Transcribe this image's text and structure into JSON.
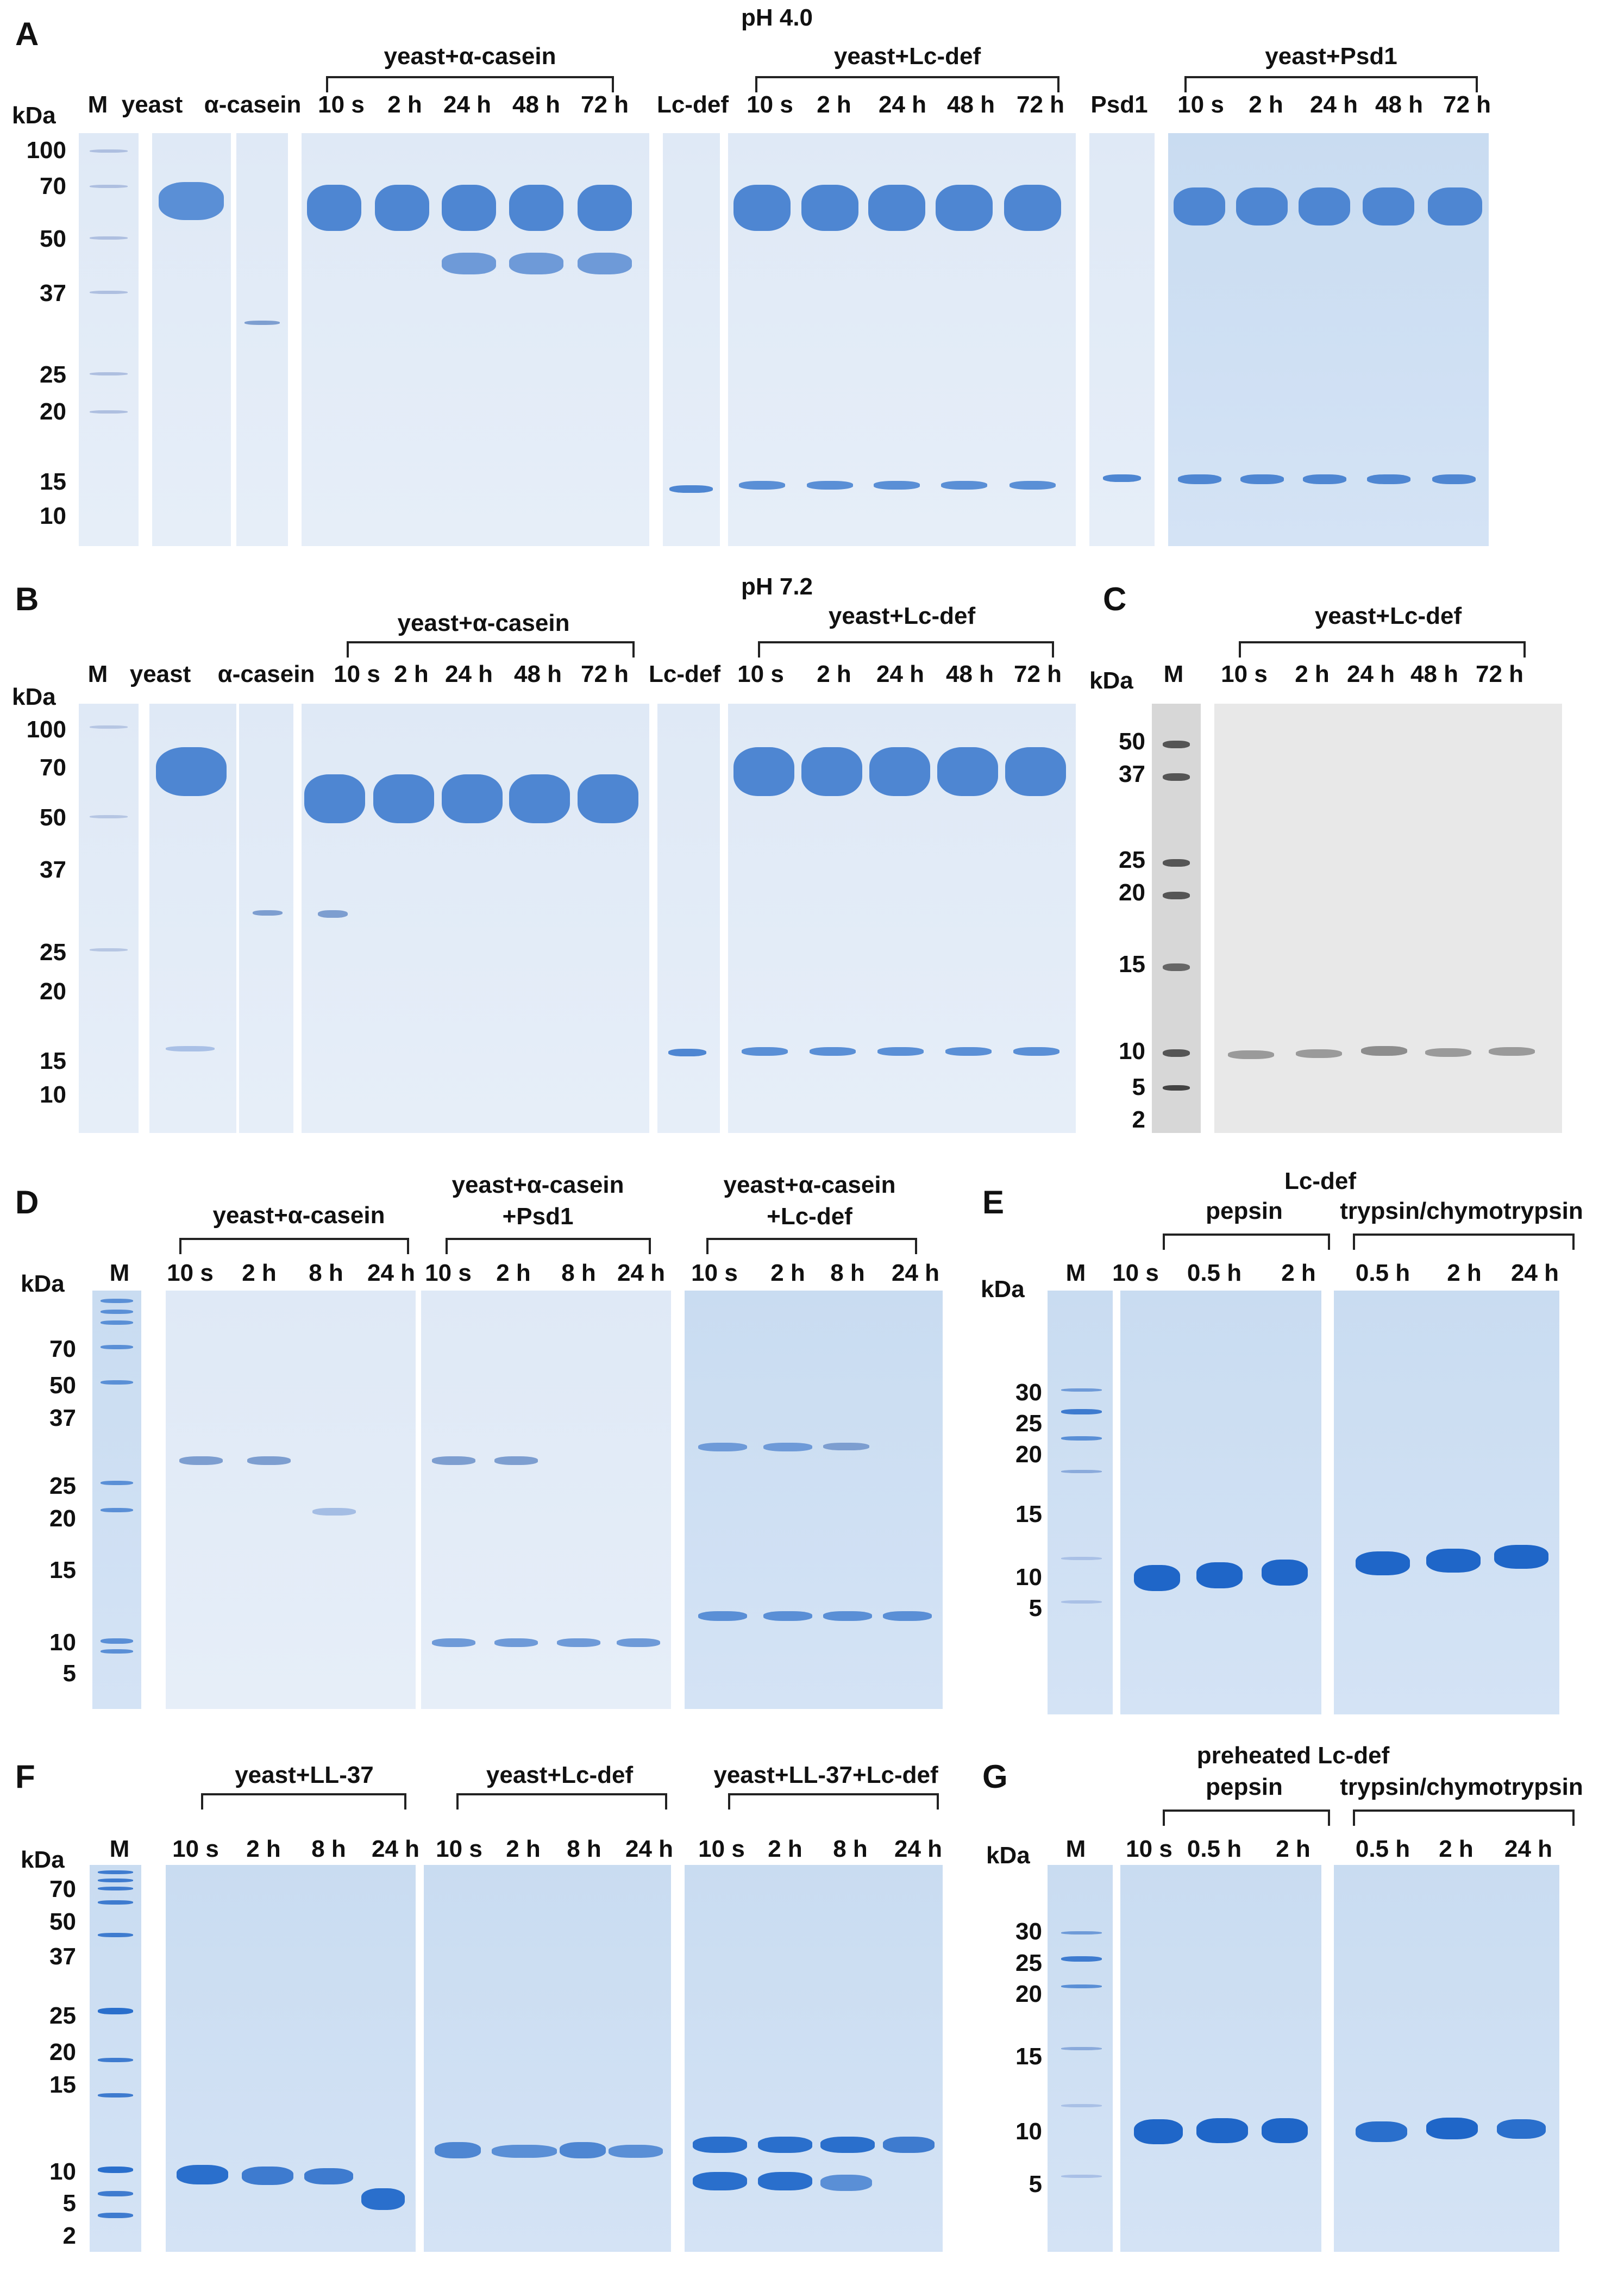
{
  "panels": {
    "A": {
      "label": "A",
      "title": "pH 4.0",
      "kda": "kDa",
      "ticks": [
        "100",
        "70",
        "50",
        "37",
        "25",
        "20",
        "15",
        "10"
      ],
      "groups": [
        "yeast+α-casein",
        "yeast+Lc-def",
        "yeast+Psd1"
      ],
      "lanes": [
        "M",
        "yeast",
        "α-casein",
        "10 s",
        "2 h",
        "24 h",
        "48 h",
        "72 h",
        "Lc-def",
        "10 s",
        "2 h",
        "24 h",
        "48 h",
        "72 h",
        "Psd1",
        "10 s",
        "2 h",
        "24 h",
        "48 h",
        "72 h"
      ]
    },
    "B": {
      "label": "B",
      "title": "pH 7.2",
      "kda": "kDa",
      "ticks": [
        "100",
        "70",
        "50",
        "37",
        "25",
        "20",
        "15",
        "10"
      ],
      "groups": [
        "yeast+α-casein",
        "yeast+Lc-def"
      ],
      "lanes": [
        "M",
        "yeast",
        "α-casein",
        "10 s",
        "2 h",
        "24 h",
        "48 h",
        "72 h",
        "Lc-def",
        "10 s",
        "2 h",
        "24 h",
        "48 h",
        "72 h"
      ]
    },
    "C": {
      "label": "C",
      "kda": "kDa",
      "ticks": [
        "50",
        "37",
        "25",
        "20",
        "15",
        "10",
        "5",
        "2"
      ],
      "groups": [
        "yeast+Lc-def"
      ],
      "lanes": [
        "M",
        "10 s",
        "2 h",
        "24 h",
        "48 h",
        "72 h"
      ]
    },
    "D": {
      "label": "D",
      "kda": "kDa",
      "ticks": [
        "70",
        "50",
        "37",
        "25",
        "20",
        "15",
        "10",
        "5"
      ],
      "groups": [
        "yeast+α-casein",
        "yeast+α-casein\n+Psd1",
        "yeast+α-casein\n+Lc-def"
      ],
      "lanes": [
        "M",
        "10 s",
        "2 h",
        "8 h",
        "24 h",
        "10 s",
        "2 h",
        "8 h",
        "24 h",
        "10 s",
        "2 h",
        "8 h",
        "24 h"
      ]
    },
    "E": {
      "label": "E",
      "kda": "kDa",
      "header": "Lc-def",
      "ticks": [
        "30",
        "25",
        "20",
        "15",
        "10",
        "5"
      ],
      "groups": [
        "pepsin",
        "trypsin/chymotrypsin"
      ],
      "lanes": [
        "M",
        "10 s",
        "0.5 h",
        "2 h",
        "0.5 h",
        "2 h",
        "24 h"
      ]
    },
    "F": {
      "label": "F",
      "kda": "kDa",
      "ticks": [
        "70",
        "50",
        "37",
        "25",
        "20",
        "15",
        "10",
        "5",
        "2"
      ],
      "groups": [
        "yeast+LL-37",
        "yeast+Lc-def",
        "yeast+LL-37+Lc-def"
      ],
      "lanes": [
        "M",
        "10 s",
        "2 h",
        "8 h",
        "24 h",
        "10 s",
        "2 h",
        "8 h",
        "24 h",
        "10 s",
        "2 h",
        "8 h",
        "24 h"
      ]
    },
    "G": {
      "label": "G",
      "kda": "kDa",
      "header": "preheated Lc-def",
      "ticks": [
        "30",
        "25",
        "20",
        "15",
        "10",
        "5"
      ],
      "groups": [
        "pepsin",
        "trypsin/chymotrypsin"
      ],
      "lanes": [
        "M",
        "10 s",
        "0.5 h",
        "2 h",
        "0.5 h",
        "2 h",
        "24 h"
      ]
    }
  }
}
